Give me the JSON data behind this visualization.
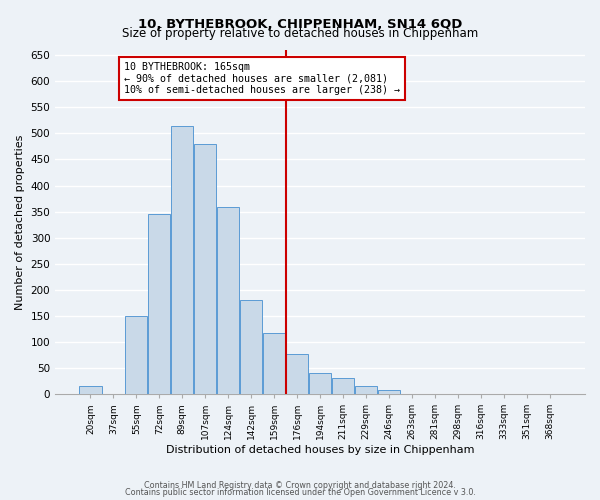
{
  "title": "10, BYTHEBROOK, CHIPPENHAM, SN14 6QD",
  "subtitle": "Size of property relative to detached houses in Chippenham",
  "xlabel": "Distribution of detached houses by size in Chippenham",
  "ylabel": "Number of detached properties",
  "bar_labels": [
    "20sqm",
    "37sqm",
    "55sqm",
    "72sqm",
    "89sqm",
    "107sqm",
    "124sqm",
    "142sqm",
    "159sqm",
    "176sqm",
    "194sqm",
    "211sqm",
    "229sqm",
    "246sqm",
    "263sqm",
    "281sqm",
    "298sqm",
    "316sqm",
    "333sqm",
    "351sqm",
    "368sqm"
  ],
  "bar_heights": [
    15,
    0,
    150,
    345,
    515,
    480,
    358,
    181,
    118,
    77,
    40,
    30,
    15,
    7,
    0,
    0,
    0,
    0,
    0,
    0,
    0
  ],
  "bar_color": "#c9d9e8",
  "bar_edge_color": "#5b9bd5",
  "ylim": [
    0,
    660
  ],
  "yticks": [
    0,
    50,
    100,
    150,
    200,
    250,
    300,
    350,
    400,
    450,
    500,
    550,
    600,
    650
  ],
  "vline_x_index": 8.5,
  "vline_color": "#cc0000",
  "annotation_line1": "10 BYTHEBROOK: 165sqm",
  "annotation_line2": "← 90% of detached houses are smaller (2,081)",
  "annotation_line3": "10% of semi-detached houses are larger (238) →",
  "box_edge_color": "#cc0000",
  "footer1": "Contains HM Land Registry data © Crown copyright and database right 2024.",
  "footer2": "Contains public sector information licensed under the Open Government Licence v 3.0.",
  "background_color": "#edf2f7",
  "grid_color": "#ffffff"
}
